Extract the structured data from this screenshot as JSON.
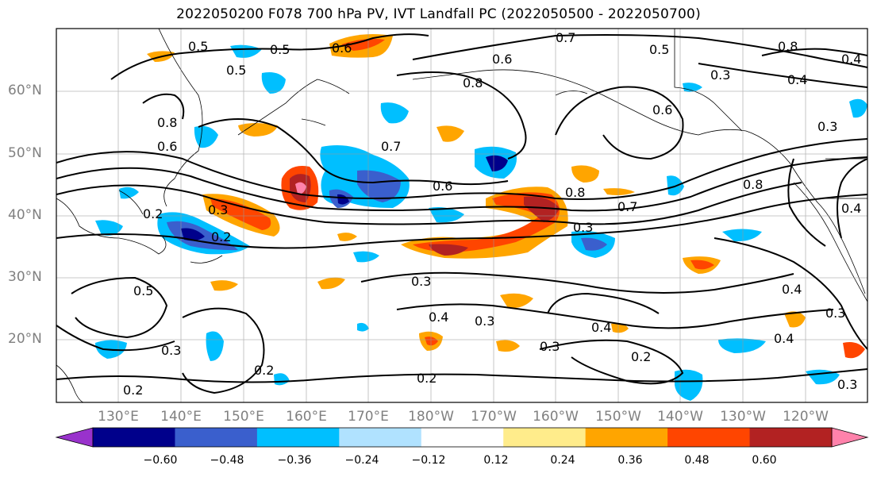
{
  "title": "2022050200 F078 700 hPa PV, IVT Landfall PC (2022050500 - 2022050700)",
  "latitude_labels": [
    "60°N",
    "50°N",
    "40°N",
    "30°N",
    "20°N"
  ],
  "longitude_labels": [
    "130°E",
    "140°E",
    "150°E",
    "160°E",
    "170°E",
    "180°W",
    "170°W",
    "160°W",
    "150°W",
    "140°W",
    "130°W",
    "120°W"
  ],
  "colorbar": {
    "ticks": [
      "−0.60",
      "−0.48",
      "−0.36",
      "−0.24",
      "−0.12",
      "0.12",
      "0.24",
      "0.36",
      "0.48",
      "0.60"
    ],
    "colors": [
      "#9932cc",
      "#00008b",
      "#3a5fcd",
      "#00bfff",
      "#b0e2ff",
      "#ffffff",
      "#ffec8b",
      "#ffa500",
      "#ff4500",
      "#b22222",
      "#ff82ab"
    ]
  },
  "contour_labels": [
    "0.5",
    "0.5",
    "0.5",
    "0.6",
    "0.7",
    "0.8",
    "0.6",
    "0.5",
    "0.4",
    "0.3",
    "0.8",
    "0.8",
    "0.6",
    "0.7",
    "0.6",
    "0.8",
    "0.7",
    "0.8",
    "0.6",
    "0.3",
    "0.3",
    "0.2",
    "0.2",
    "0.3",
    "0.5",
    "0.3",
    "0.4",
    "0.3",
    "0.4",
    "0.3",
    "0.4",
    "0.4",
    "0.3",
    "0.2",
    "0.2",
    "0.2",
    "0.4",
    "0.2",
    "0.4",
    "0.3",
    "0.3"
  ]
}
